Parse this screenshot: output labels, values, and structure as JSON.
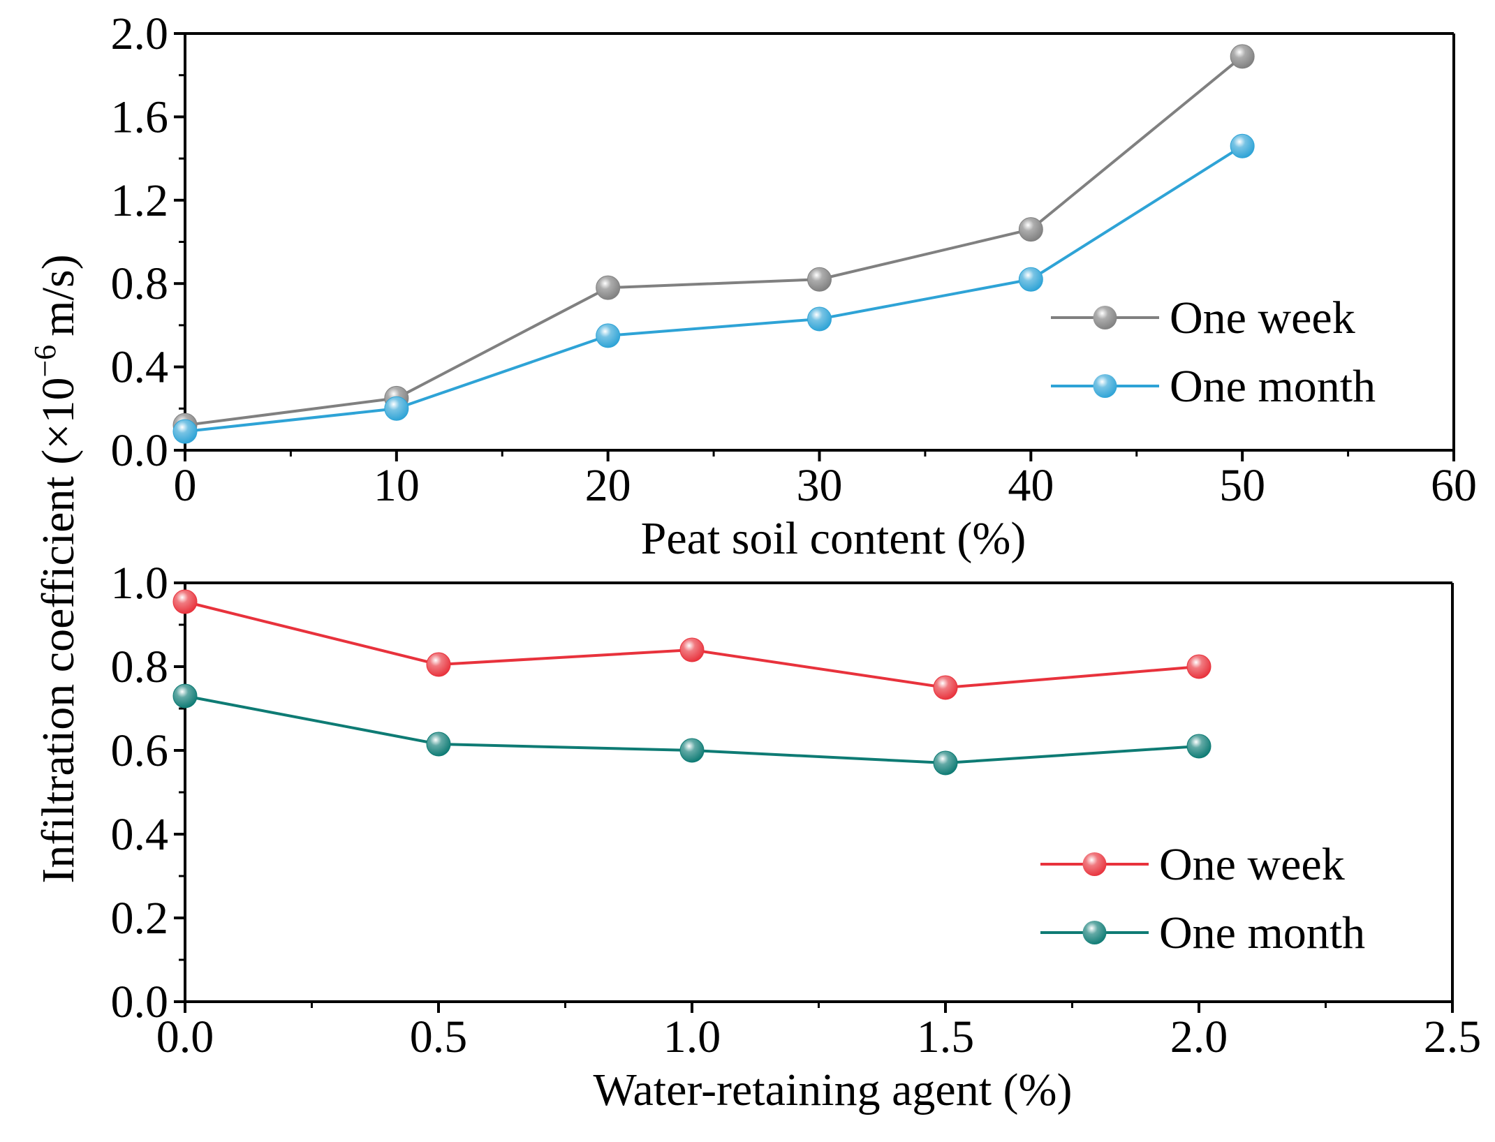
{
  "figure": {
    "shared_ylabel": "Infiltration coefficient (×10",
    "shared_ylabel_exp": "−6",
    "shared_ylabel_unit": "m/s)"
  },
  "chart_data": [
    {
      "type": "line",
      "xlabel": "Peat soil content (%)",
      "ylabel": "Infiltration coefficient (×10^-6 m/s)",
      "xlim": [
        0,
        60
      ],
      "ylim": [
        0,
        2.0
      ],
      "xticks": [
        0,
        10,
        20,
        30,
        40,
        50,
        60
      ],
      "xtick_labels": [
        "0",
        "10",
        "20",
        "30",
        "40",
        "50",
        "60"
      ],
      "yticks": [
        0,
        0.4,
        0.8,
        1.2,
        1.6,
        2.0
      ],
      "ytick_labels": [
        "0.0",
        "0.4",
        "0.8",
        "1.2",
        "1.6",
        "2.0"
      ],
      "grid": false,
      "legend_position": "right",
      "x": [
        0,
        10,
        20,
        30,
        40,
        50
      ],
      "series": [
        {
          "name": "One week",
          "color": "#808080",
          "values": [
            0.12,
            0.25,
            0.78,
            0.82,
            1.06,
            1.89
          ]
        },
        {
          "name": "One month",
          "color": "#2ea3d6",
          "values": [
            0.09,
            0.2,
            0.55,
            0.63,
            0.82,
            1.46
          ]
        }
      ]
    },
    {
      "type": "line",
      "xlabel": "Water-retaining agent (%)",
      "ylabel": "Infiltration coefficient (×10^-6 m/s)",
      "xlim": [
        0,
        2.5
      ],
      "ylim": [
        0,
        1.0
      ],
      "xticks": [
        0,
        0.5,
        1.0,
        1.5,
        2.0,
        2.5
      ],
      "xtick_labels": [
        "0.0",
        "0.5",
        "1.0",
        "1.5",
        "2.0",
        "2.5"
      ],
      "yticks": [
        0,
        0.2,
        0.4,
        0.6,
        0.8,
        1.0
      ],
      "ytick_labels": [
        "0.0",
        "0.2",
        "0.4",
        "0.6",
        "0.8",
        "1.0"
      ],
      "grid": false,
      "legend_position": "bottom-right",
      "x": [
        0,
        0.5,
        1.0,
        1.5,
        2.0
      ],
      "series": [
        {
          "name": "One week",
          "color": "#e8323c",
          "values": [
            0.955,
            0.805,
            0.84,
            0.75,
            0.8
          ]
        },
        {
          "name": "One month",
          "color": "#0e7b74",
          "values": [
            0.73,
            0.615,
            0.6,
            0.57,
            0.61
          ]
        }
      ]
    }
  ]
}
